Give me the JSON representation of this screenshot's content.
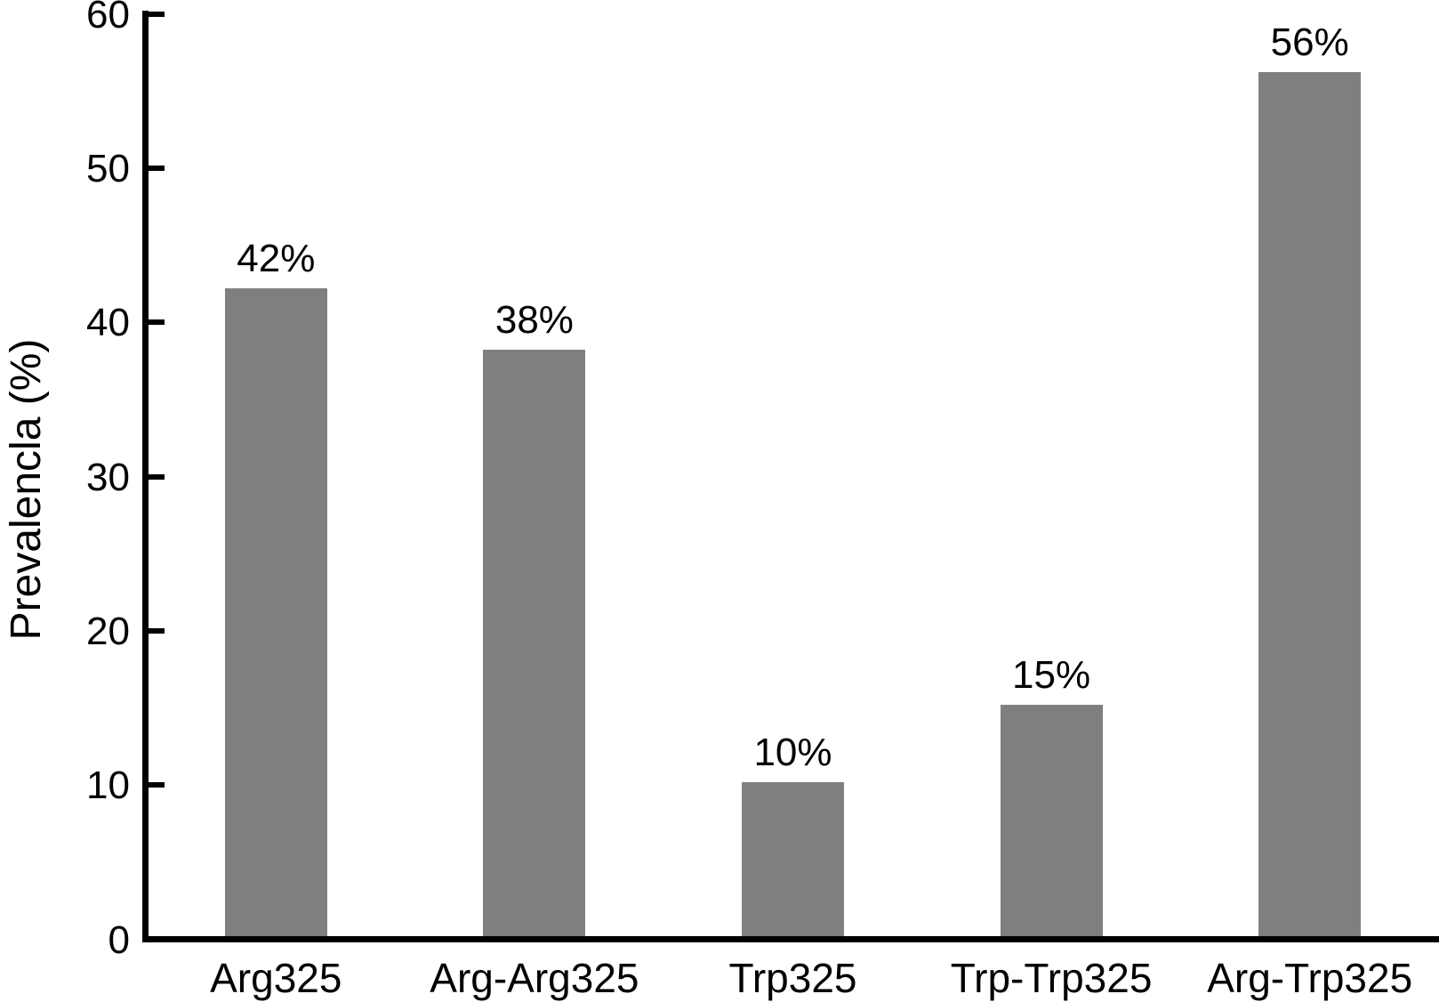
{
  "chart_data": {
    "type": "bar",
    "title": "",
    "xlabel": "",
    "ylabel": "Prevalencla (%)",
    "categories": [
      "Arg325",
      "Arg-Arg325",
      "Trp325",
      "Trp-Trp325",
      "Arg-Trp325"
    ],
    "values": [
      42,
      38,
      10,
      15,
      56
    ],
    "value_labels": [
      "42%",
      "38%",
      "10%",
      "15%",
      "56%"
    ],
    "ylim": [
      0,
      60
    ],
    "yticks": [
      0,
      10,
      20,
      30,
      40,
      50,
      60
    ],
    "grid": false,
    "legend": null,
    "colors": {
      "bar_fill": "#7f7f7f",
      "axis": "#000000",
      "text": "#000000",
      "background": "#ffffff"
    }
  }
}
